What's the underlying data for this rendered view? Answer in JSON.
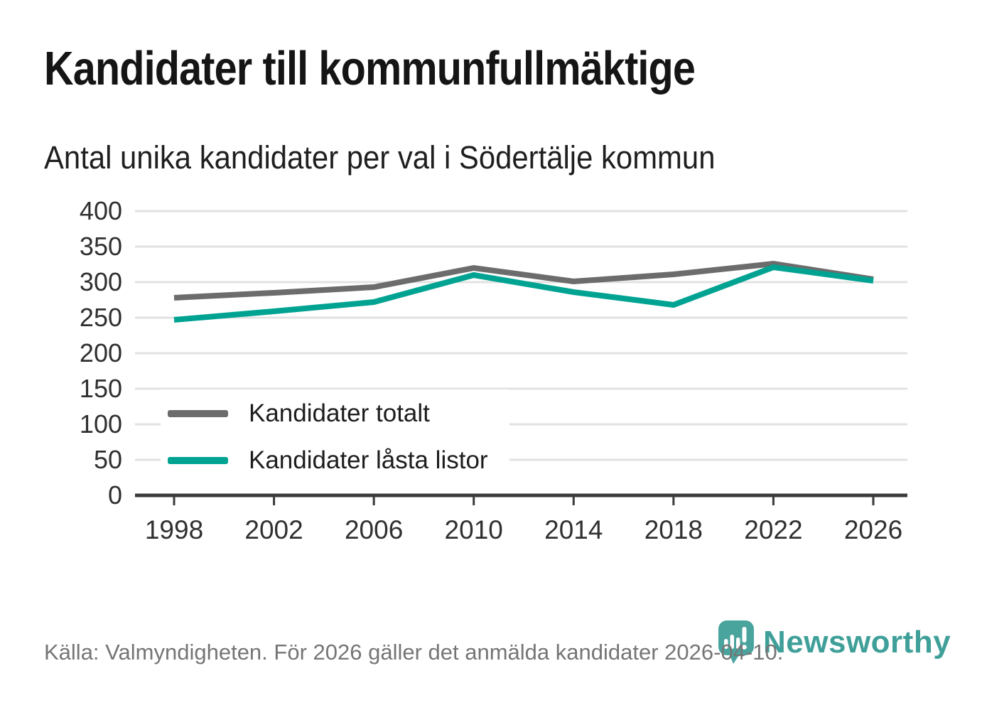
{
  "title": "Kandidater till kommunfullmäktige",
  "subtitle": "Antal unika kandidater per val i Södertälje kommun",
  "footer": {
    "source_text": "Källa: Valmyndigheten. För 2026 gäller det anmälda kandidater 2026-04-10."
  },
  "branding": {
    "name": "Newsworthy",
    "wordmark_color": "#3f9f99",
    "pin_color": "#4aa49e",
    "icon": "bar-chart-pin-icon"
  },
  "legend": [
    {
      "label": "Kandidater totalt",
      "color": "#6c6c6c"
    },
    {
      "label": "Kandidater låsta listor",
      "color": "#00a392"
    }
  ],
  "chart_data": {
    "type": "line",
    "categories": [
      "1998",
      "2002",
      "2006",
      "2010",
      "2014",
      "2018",
      "2022",
      "2026"
    ],
    "series": [
      {
        "name": "Kandidater totalt",
        "color": "#6c6c6c",
        "values": [
          278,
          285,
          293,
          320,
          301,
          311,
          326,
          304
        ]
      },
      {
        "name": "Kandidater låsta listor",
        "color": "#00a392",
        "values": [
          247,
          259,
          272,
          310,
          286,
          268,
          321,
          302
        ]
      }
    ],
    "ylim": [
      0,
      400
    ],
    "ytick_step": 50,
    "yticks": [
      0,
      50,
      100,
      150,
      200,
      250,
      300,
      350,
      400
    ],
    "grid": "horizontal-only",
    "legend_position": "inside-bottom-left",
    "line_width": 8,
    "colors": {
      "gridline": "#e2e2e2",
      "axis_line": "#3a3a3a",
      "tick_label": "#303030"
    }
  }
}
